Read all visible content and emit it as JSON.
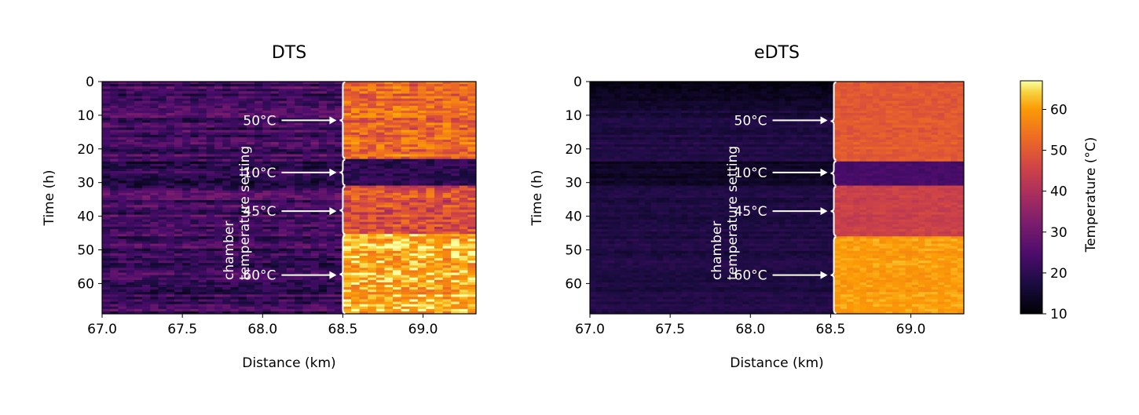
{
  "chart_data": [
    {
      "type": "heatmap",
      "title": "DTS",
      "xlabel": "Distance (km)",
      "ylabel": "Time (h)",
      "xlim": [
        67.0,
        69.33
      ],
      "ylim": [
        69,
        0
      ],
      "xticks": [
        "67.0",
        "67.5",
        "68.0",
        "68.5",
        "69.0"
      ],
      "yticks": [
        "0",
        "10",
        "20",
        "30",
        "40",
        "50",
        "60"
      ],
      "chamber_start_km": 68.5,
      "annotation": "chamber\ntemperature setting",
      "annotation_lines": [
        "chamber",
        "temperature setting"
      ],
      "setpoints": [
        {
          "label": "50°C",
          "value": 50,
          "t_start": 0,
          "t_end": 23,
          "t_arrow": 11.5
        },
        {
          "label": "10°C",
          "value": 10,
          "t_start": 23,
          "t_end": 31,
          "t_arrow": 27
        },
        {
          "label": "45°C",
          "value": 45,
          "t_start": 31,
          "t_end": 45.5,
          "t_arrow": 38.5
        },
        {
          "label": "60°C",
          "value": 60,
          "t_start": 45.5,
          "t_end": 69,
          "t_arrow": 57.5
        }
      ],
      "outside_temp_c": 20,
      "noise": "high"
    },
    {
      "type": "heatmap",
      "title": "eDTS",
      "xlabel": "Distance (km)",
      "ylabel": "Time (h)",
      "xlim": [
        67.0,
        69.33
      ],
      "ylim": [
        69,
        0
      ],
      "xticks": [
        "67.0",
        "67.5",
        "68.0",
        "68.5",
        "69.0"
      ],
      "yticks": [
        "0",
        "10",
        "20",
        "30",
        "40",
        "50",
        "60"
      ],
      "chamber_start_km": 68.52,
      "annotation": "chamber\ntemperature setting",
      "annotation_lines": [
        "chamber",
        "temperature setting"
      ],
      "setpoints": [
        {
          "label": "50°C",
          "value": 50,
          "t_start": 0,
          "t_end": 23.5,
          "t_arrow": 11.5
        },
        {
          "label": "10°C",
          "value": 10,
          "t_start": 23.5,
          "t_end": 31,
          "t_arrow": 27
        },
        {
          "label": "45°C",
          "value": 45,
          "t_start": 31,
          "t_end": 46,
          "t_arrow": 38.5
        },
        {
          "label": "60°C",
          "value": 60,
          "t_start": 46,
          "t_end": 69,
          "t_arrow": 57.5
        }
      ],
      "outside_temp_c": 20,
      "noise": "low"
    }
  ],
  "colorbar": {
    "label": "Temperature (°C)",
    "range": [
      10,
      67
    ],
    "ticks": [
      "10",
      "20",
      "30",
      "40",
      "50",
      "60"
    ],
    "colormap": "inferno"
  }
}
